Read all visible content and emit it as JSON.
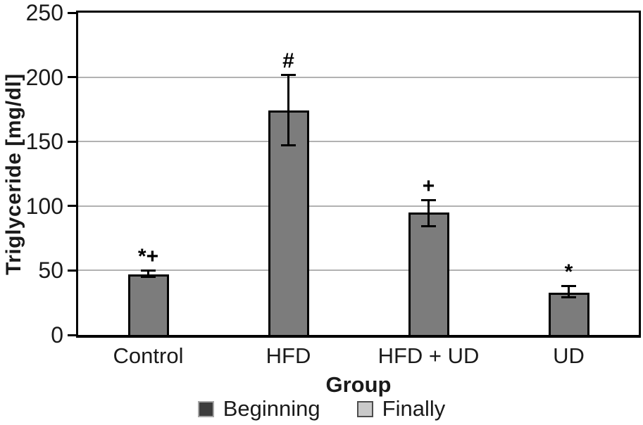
{
  "chart_data": {
    "type": "bar",
    "title": "",
    "xlabel": "Group",
    "ylabel": "Triglyceride [mg/dl]",
    "ylim": [
      0,
      250
    ],
    "yticks": [
      0,
      50,
      100,
      150,
      200,
      250
    ],
    "grid": "horizontal",
    "legend_position": "bottom",
    "categories": [
      "Control",
      "HFD",
      "HFD + UD",
      "UD"
    ],
    "series": [
      {
        "name": "Finally",
        "values": [
          47,
          174,
          95,
          33
        ]
      }
    ],
    "error_bars": {
      "up": [
        3,
        28,
        10,
        5
      ],
      "down": [
        2,
        27,
        11,
        4
      ]
    },
    "annotations": [
      "*+",
      "#",
      "+",
      "*"
    ],
    "legend": [
      {
        "label": "Beginning",
        "fill": "#3c3c3c",
        "border": "#a6a6a6"
      },
      {
        "label": "Finally",
        "fill": "#c9c9c9",
        "border": "#4d4d4d"
      }
    ],
    "colors": {
      "bar_fill": "#7c7c7c",
      "bar_border": "#000000",
      "gridline": "#b2b2b2",
      "axis": "#000000"
    }
  }
}
